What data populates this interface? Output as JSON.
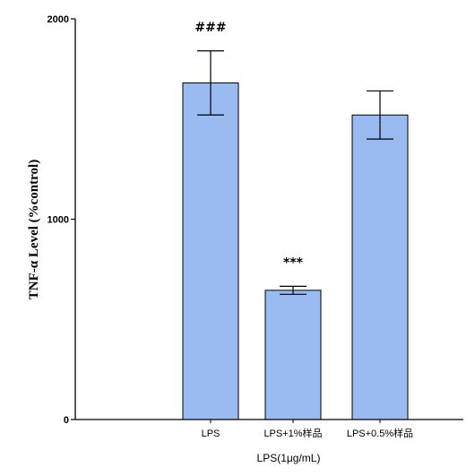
{
  "chart_data": {
    "type": "bar",
    "categories": [
      "LPS",
      "LPS+1%样品",
      "LPS+0.5%样品"
    ],
    "values": [
      1680,
      645,
      1520
    ],
    "errors": [
      160,
      20,
      120
    ],
    "annotations": [
      "###",
      "***",
      ""
    ],
    "title": "",
    "xlabel": "LPS(1μg/mL)",
    "ylabel": "TNF-α Level (%control)",
    "ylim": [
      0,
      2000
    ],
    "yticks": [
      0,
      1000,
      2000
    ],
    "grid": false,
    "legend": "none",
    "bar_color": "#99bbf2",
    "edge_color": "#000000"
  }
}
